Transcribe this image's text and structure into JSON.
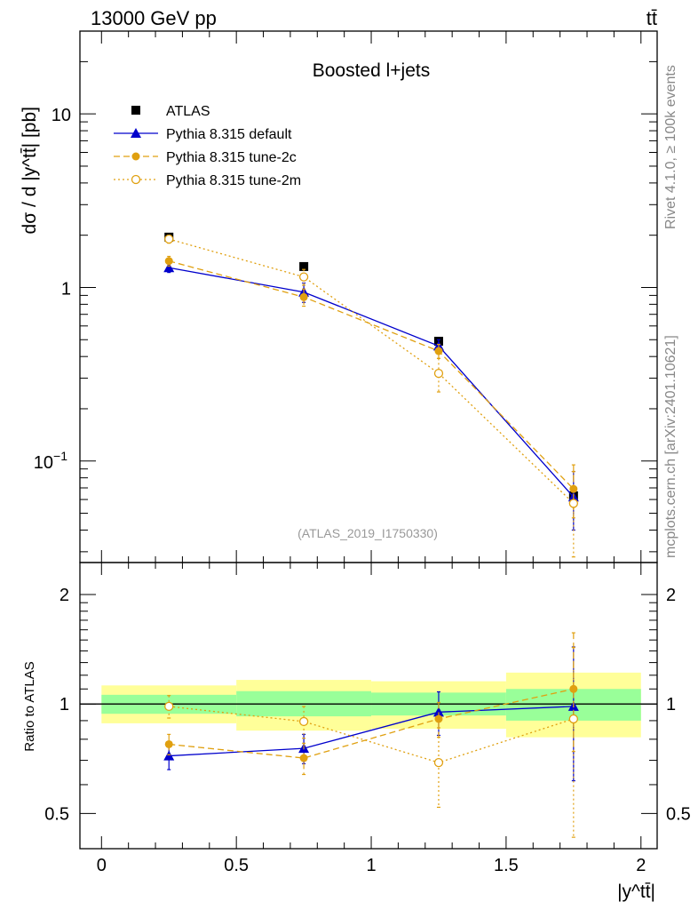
{
  "header": {
    "left": "13000 GeV pp",
    "right": "tt̄"
  },
  "side": {
    "rivet": "Rivet 4.1.0, ≥ 100k events",
    "mcplots": "mcplots.cern.ch [arXiv:2401.10621]"
  },
  "chart_data": [
    {
      "type": "scatter",
      "title": "Boosted l+jets",
      "ylabel": "dσ / d |y^tt̄| [pb]",
      "yscale": "log",
      "ylim": [
        0.026,
        30
      ],
      "xlim": [
        -0.08,
        2.06
      ],
      "yticks": [
        {
          "value": 0.1,
          "base": "10",
          "exp": "−1"
        },
        {
          "value": 1,
          "label": "1"
        },
        {
          "value": 10,
          "label": "10"
        }
      ],
      "watermark": "(ATLAS_2019_I1750330)",
      "x": [
        0.25,
        0.75,
        1.25,
        1.75
      ],
      "series": [
        {
          "name": "ATLAS",
          "color": "#000000",
          "marker": "square-filled",
          "line": "none",
          "values": [
            1.95,
            1.32,
            0.49,
            0.063
          ]
        },
        {
          "name": "Pythia 8.315 default",
          "color": "#0000cc",
          "marker": "triangle-filled",
          "line": "solid",
          "values": [
            1.3,
            0.94,
            0.46,
            0.062
          ],
          "err_lo": [
            0.08,
            0.12,
            0.04,
            0.022
          ],
          "err_hi": [
            0.08,
            0.12,
            0.04,
            0.025
          ]
        },
        {
          "name": "Pythia 8.315 tune-2c",
          "color": "#e0a010",
          "marker": "circle-filled",
          "line": "dashed",
          "values": [
            1.42,
            0.88,
            0.43,
            0.069
          ],
          "err_lo": [
            0.09,
            0.1,
            0.04,
            0.022
          ],
          "err_hi": [
            0.09,
            0.1,
            0.04,
            0.026
          ]
        },
        {
          "name": "Pythia 8.315 tune-2m",
          "color": "#e0a010",
          "marker": "circle-open",
          "line": "dotted",
          "values": [
            1.9,
            1.15,
            0.32,
            0.057
          ],
          "err_lo": [
            0.1,
            0.12,
            0.07,
            0.029
          ],
          "err_hi": [
            0.1,
            0.12,
            0.07,
            0.03
          ]
        }
      ]
    },
    {
      "type": "scatter",
      "ylabel": "Ratio to ATLAS",
      "xlabel": "|y^tt̄|",
      "yscale": "log",
      "ylim": [
        0.4,
        2.45
      ],
      "xlim": [
        -0.08,
        2.06
      ],
      "yticks": [
        {
          "value": 0.5,
          "label": "0.5"
        },
        {
          "value": 1,
          "label": "1"
        },
        {
          "value": 2,
          "label": "2"
        }
      ],
      "xticks": [
        {
          "value": 0,
          "label": "0"
        },
        {
          "value": 0.5,
          "label": "0.5"
        },
        {
          "value": 1,
          "label": "1"
        },
        {
          "value": 1.5,
          "label": "1.5"
        },
        {
          "value": 2,
          "label": "2"
        }
      ],
      "bands": [
        {
          "x0": 0,
          "x1": 0.5,
          "yellow": [
            0.885,
            1.125
          ],
          "green": [
            0.94,
            1.06
          ]
        },
        {
          "x0": 0.5,
          "x1": 1,
          "yellow": [
            0.845,
            1.165
          ],
          "green": [
            0.925,
            1.085
          ]
        },
        {
          "x0": 1,
          "x1": 1.5,
          "yellow": [
            0.855,
            1.155
          ],
          "green": [
            0.93,
            1.075
          ]
        },
        {
          "x0": 1.5,
          "x1": 2,
          "yellow": [
            0.81,
            1.22
          ],
          "green": [
            0.9,
            1.1
          ]
        }
      ],
      "x": [
        0.25,
        0.75,
        1.25,
        1.75
      ],
      "series": [
        {
          "name": "Pythia 8.315 default",
          "color": "#0000cc",
          "marker": "triangle-filled",
          "line": "solid",
          "values": [
            0.72,
            0.755,
            0.95,
            0.985
          ],
          "err_lo": [
            0.06,
            0.07,
            0.13,
            0.37
          ],
          "err_hi": [
            0.06,
            0.07,
            0.13,
            0.45
          ]
        },
        {
          "name": "Pythia 8.315 tune-2c",
          "color": "#e0a010",
          "marker": "circle-filled",
          "line": "dashed",
          "values": [
            0.775,
            0.71,
            0.91,
            1.1
          ],
          "err_lo": [
            0.05,
            0.07,
            0.1,
            0.36
          ],
          "err_hi": [
            0.05,
            0.07,
            0.1,
            0.47
          ]
        },
        {
          "name": "Pythia 8.315 tune-2m",
          "color": "#e0a010",
          "marker": "circle-open",
          "line": "dotted",
          "values": [
            0.985,
            0.895,
            0.69,
            0.91
          ],
          "err_lo": [
            0.07,
            0.09,
            0.17,
            0.48
          ],
          "err_hi": [
            0.07,
            0.09,
            0.17,
            0.52
          ]
        }
      ]
    }
  ]
}
